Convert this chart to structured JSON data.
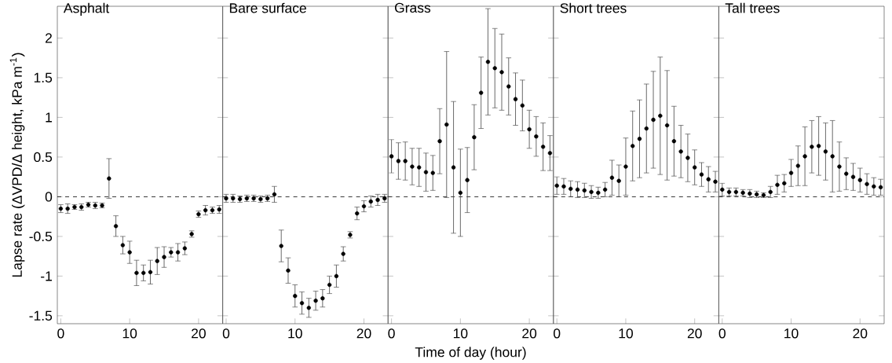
{
  "chart_data": [
    {
      "type": "scatter",
      "title": "Asphalt",
      "ylabel": "Lapse rate (ΔVPD/Δ height, kPa m$^{-1}$)",
      "color": "#000000",
      "marker": "circle",
      "x": [
        0,
        1,
        2,
        3,
        4,
        5,
        6,
        7,
        8,
        9,
        10,
        11,
        12,
        13,
        14,
        15,
        16,
        17,
        18,
        19,
        20,
        21,
        22,
        23
      ],
      "values": [
        -0.15,
        -0.15,
        -0.13,
        -0.13,
        -0.1,
        -0.11,
        -0.11,
        0.23,
        -0.37,
        -0.61,
        -0.7,
        -0.96,
        -0.96,
        -0.95,
        -0.81,
        -0.76,
        -0.7,
        -0.7,
        -0.65,
        -0.47,
        -0.22,
        -0.17,
        -0.17,
        -0.16
      ],
      "errors": [
        0.05,
        0.06,
        0.03,
        0.04,
        0.03,
        0.04,
        0.03,
        0.25,
        0.13,
        0.11,
        0.14,
        0.16,
        0.1,
        0.15,
        0.17,
        0.13,
        0.06,
        0.11,
        0.08,
        0.04,
        0.04,
        0.06,
        0.04,
        0.05
      ],
      "xlim": [
        -0.5,
        23.5
      ],
      "ylim": [
        -1.6,
        2.4
      ],
      "xticks": [
        0,
        10,
        20
      ],
      "yticks": [
        -1.5,
        -1,
        -0.5,
        0,
        0.5,
        1,
        1.5,
        2
      ],
      "ref_lines": [
        {
          "axis": "y",
          "value": 0,
          "line_style": "dashed"
        }
      ]
    },
    {
      "type": "scatter",
      "title": "Bare surface",
      "color": "#000000",
      "marker": "circle",
      "tick_labels": "x",
      "x": [
        0,
        1,
        2,
        3,
        4,
        5,
        6,
        7,
        8,
        9,
        10,
        11,
        12,
        13,
        14,
        15,
        16,
        17,
        18,
        19,
        20,
        21,
        22,
        23
      ],
      "values": [
        -0.02,
        -0.02,
        -0.03,
        -0.02,
        -0.02,
        -0.03,
        -0.02,
        0.03,
        -0.62,
        -0.93,
        -1.25,
        -1.34,
        -1.4,
        -1.31,
        -1.28,
        -1.11,
        -1.0,
        -0.72,
        -0.48,
        -0.21,
        -0.12,
        -0.06,
        -0.04,
        -0.02
      ],
      "errors": [
        0.05,
        0.05,
        0.04,
        0.04,
        0.04,
        0.04,
        0.04,
        0.1,
        0.2,
        0.16,
        0.14,
        0.14,
        0.12,
        0.12,
        0.11,
        0.11,
        0.14,
        0.09,
        0.04,
        0.08,
        0.07,
        0.07,
        0.07,
        0.05
      ],
      "xlim": [
        -0.5,
        23.5
      ],
      "ylim": [
        -1.6,
        2.4
      ],
      "xticks": [
        0,
        10,
        20
      ],
      "yticks": [
        -1.5,
        -1,
        -0.5,
        0,
        0.5,
        1,
        1.5,
        2
      ],
      "ref_lines": [
        {
          "axis": "y",
          "value": 0,
          "line_style": "dashed"
        }
      ]
    },
    {
      "type": "scatter",
      "title": "Grass",
      "xlabel": "Time of day (hour)",
      "color": "#000000",
      "marker": "circle",
      "tick_labels": "x",
      "x": [
        0,
        1,
        2,
        3,
        4,
        5,
        6,
        7,
        8,
        9,
        10,
        11,
        12,
        13,
        14,
        15,
        16,
        17,
        18,
        19,
        20,
        21,
        22,
        23
      ],
      "values": [
        0.51,
        0.45,
        0.45,
        0.38,
        0.37,
        0.31,
        0.3,
        0.7,
        0.91,
        0.37,
        0.05,
        0.21,
        0.75,
        1.31,
        1.7,
        1.62,
        1.57,
        1.39,
        1.23,
        1.15,
        0.85,
        0.76,
        0.63,
        0.55
      ],
      "errors": [
        0.21,
        0.23,
        0.24,
        0.23,
        0.24,
        0.24,
        0.22,
        0.41,
        0.92,
        0.83,
        0.55,
        0.41,
        0.41,
        0.45,
        0.67,
        0.5,
        0.48,
        0.36,
        0.33,
        0.32,
        0.24,
        0.25,
        0.3,
        0.22
      ],
      "xlim": [
        -0.5,
        23.5
      ],
      "ylim": [
        -1.6,
        2.4
      ],
      "xticks": [
        0,
        10,
        20
      ],
      "yticks": [
        -1.5,
        -1,
        -0.5,
        0,
        0.5,
        1,
        1.5,
        2
      ],
      "ref_lines": [
        {
          "axis": "y",
          "value": 0,
          "line_style": "dashed"
        }
      ]
    },
    {
      "type": "scatter",
      "title": "Short trees",
      "color": "#000000",
      "marker": "circle",
      "tick_labels": "x",
      "x": [
        0,
        1,
        2,
        3,
        4,
        5,
        6,
        7,
        8,
        9,
        10,
        11,
        12,
        13,
        14,
        15,
        16,
        17,
        18,
        19,
        20,
        21,
        22,
        23
      ],
      "values": [
        0.14,
        0.13,
        0.1,
        0.09,
        0.08,
        0.06,
        0.05,
        0.09,
        0.24,
        0.2,
        0.38,
        0.64,
        0.73,
        0.86,
        0.97,
        1.02,
        0.9,
        0.7,
        0.57,
        0.49,
        0.37,
        0.28,
        0.22,
        0.19
      ],
      "errors": [
        0.11,
        0.1,
        0.1,
        0.1,
        0.09,
        0.08,
        0.07,
        0.09,
        0.22,
        0.2,
        0.36,
        0.44,
        0.49,
        0.56,
        0.61,
        0.74,
        0.69,
        0.44,
        0.33,
        0.3,
        0.22,
        0.15,
        0.16,
        0.13
      ],
      "xlim": [
        -0.5,
        23.5
      ],
      "ylim": [
        -1.6,
        2.4
      ],
      "xticks": [
        0,
        10,
        20
      ],
      "yticks": [
        -1.5,
        -1,
        -0.5,
        0,
        0.5,
        1,
        1.5,
        2
      ],
      "ref_lines": [
        {
          "axis": "y",
          "value": 0,
          "line_style": "dashed"
        }
      ]
    },
    {
      "type": "scatter",
      "title": "Tall trees",
      "color": "#000000",
      "marker": "circle",
      "tick_labels": "x",
      "x": [
        0,
        1,
        2,
        3,
        4,
        5,
        6,
        7,
        8,
        9,
        10,
        11,
        12,
        13,
        14,
        15,
        16,
        17,
        18,
        19,
        20,
        21,
        22,
        23
      ],
      "values": [
        0.09,
        0.06,
        0.06,
        0.05,
        0.04,
        0.03,
        0.02,
        0.06,
        0.15,
        0.17,
        0.3,
        0.39,
        0.51,
        0.63,
        0.64,
        0.57,
        0.51,
        0.38,
        0.29,
        0.25,
        0.21,
        0.16,
        0.13,
        0.12
      ],
      "errors": [
        0.08,
        0.05,
        0.05,
        0.04,
        0.05,
        0.04,
        0.03,
        0.07,
        0.12,
        0.11,
        0.17,
        0.25,
        0.37,
        0.33,
        0.37,
        0.36,
        0.45,
        0.31,
        0.2,
        0.17,
        0.15,
        0.13,
        0.11,
        0.1
      ],
      "xlim": [
        -0.5,
        23.5
      ],
      "ylim": [
        -1.6,
        2.4
      ],
      "xticks": [
        0,
        10,
        20
      ],
      "yticks": [
        -1.5,
        -1,
        -0.5,
        0,
        0.5,
        1,
        1.5,
        2
      ],
      "ref_lines": [
        {
          "axis": "y",
          "value": 0,
          "line_style": "dashed"
        }
      ]
    }
  ]
}
